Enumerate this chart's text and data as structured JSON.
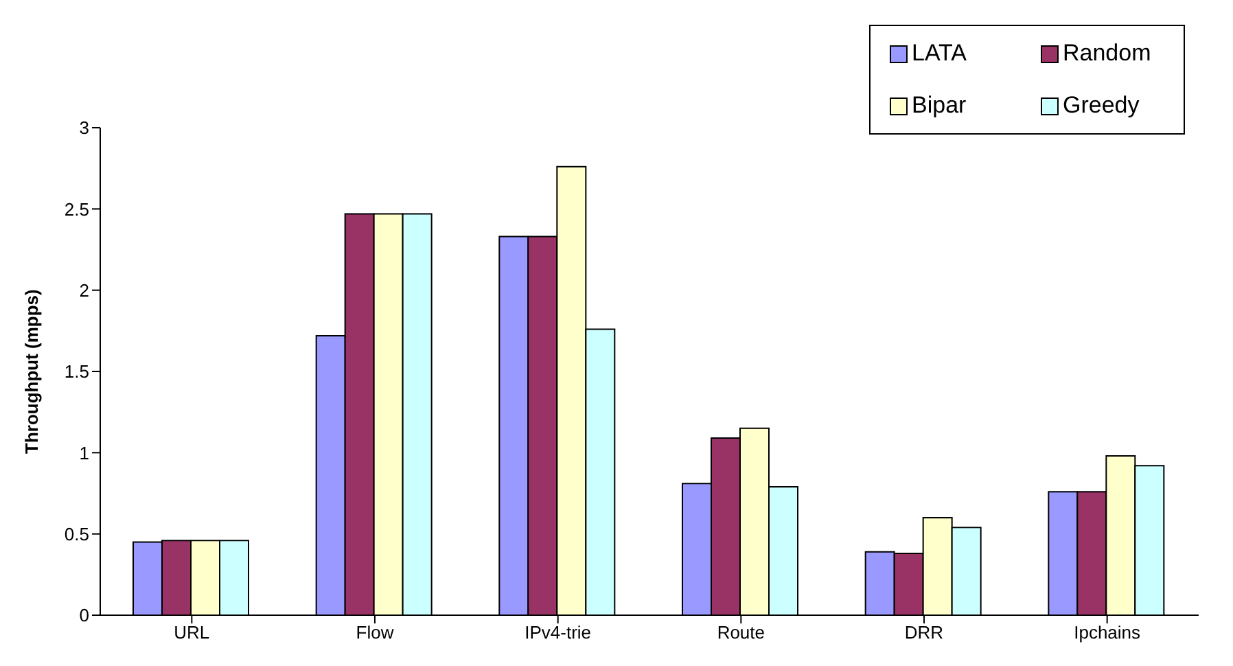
{
  "chart_data": {
    "type": "bar",
    "ylabel": "Throughput (mpps)",
    "categories": [
      "URL",
      "Flow",
      "IPv4-trie",
      "Route",
      "DRR",
      "Ipchains"
    ],
    "series": [
      {
        "name": "LATA",
        "color": "#9999ff",
        "values": [
          0.45,
          1.72,
          2.33,
          0.81,
          0.39,
          0.76
        ]
      },
      {
        "name": "Random",
        "color": "#993366",
        "values": [
          0.46,
          2.47,
          2.33,
          1.09,
          0.38,
          0.76
        ]
      },
      {
        "name": "Bipar",
        "color": "#ffffcc",
        "values": [
          0.46,
          2.47,
          2.76,
          1.15,
          0.6,
          0.98
        ]
      },
      {
        "name": "Greedy",
        "color": "#ccffff",
        "values": [
          0.46,
          2.47,
          1.76,
          0.79,
          0.54,
          0.92
        ]
      }
    ],
    "ylim": [
      0,
      3
    ],
    "yticks": [
      0,
      0.5,
      1,
      1.5,
      2,
      2.5,
      3
    ],
    "grid": false,
    "legend": "top right"
  }
}
